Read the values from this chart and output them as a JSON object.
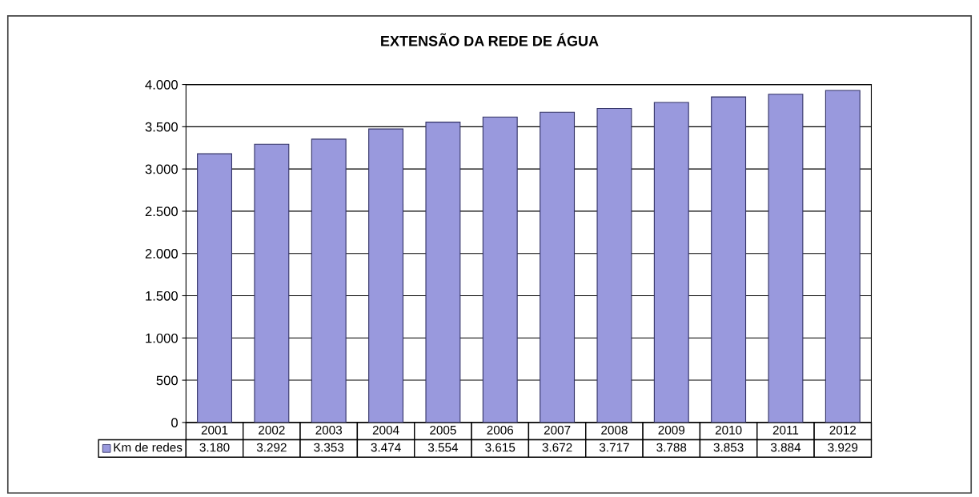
{
  "chart_data": {
    "type": "bar",
    "title": "EXTENSÃO DA REDE DE ÁGUA",
    "categories": [
      "2001",
      "2002",
      "2003",
      "2004",
      "2005",
      "2006",
      "2007",
      "2008",
      "2009",
      "2010",
      "2011",
      "2012"
    ],
    "series": [
      {
        "name": "Km de redes",
        "color": "#9999dd",
        "values": [
          3180,
          3292,
          3353,
          3474,
          3554,
          3615,
          3672,
          3717,
          3788,
          3853,
          3884,
          3929
        ],
        "value_labels": [
          "3.180",
          "3.292",
          "3.353",
          "3.474",
          "3.554",
          "3.615",
          "3.672",
          "3.717",
          "3.788",
          "3.853",
          "3.884",
          "3.929"
        ]
      }
    ],
    "ylim": [
      0,
      4000
    ],
    "yticks": [
      {
        "value": 0,
        "label": "0"
      },
      {
        "value": 500,
        "label": "500"
      },
      {
        "value": 1000,
        "label": "1.000"
      },
      {
        "value": 1500,
        "label": "1.500"
      },
      {
        "value": 2000,
        "label": "2.000"
      },
      {
        "value": 2500,
        "label": "2.500"
      },
      {
        "value": 3000,
        "label": "3.000"
      },
      {
        "value": 3500,
        "label": "3.500"
      },
      {
        "value": 4000,
        "label": "4.000"
      }
    ],
    "grid": "y",
    "legend": "bottom",
    "tick_labels": "y"
  }
}
